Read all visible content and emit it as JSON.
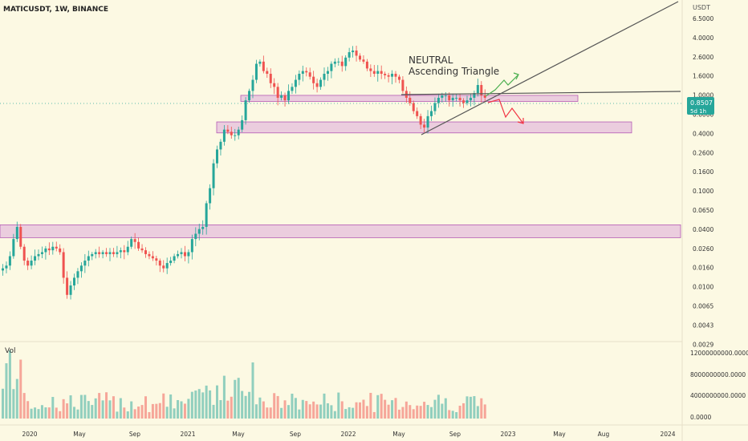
{
  "header": {
    "symbol_line": "MATICUSDT, 1W, BINANCE"
  },
  "annotation": {
    "line1": "NEUTRAL",
    "line2": "Ascending Triangle"
  },
  "price_axis": {
    "currency": "USDT",
    "current_price": "0.8507",
    "countdown": "5d 1h",
    "labels": [
      "6.5000",
      "4.0000",
      "2.6000",
      "1.6000",
      "1.0000",
      "0.6000",
      "0.4000",
      "0.2600",
      "0.1600",
      "0.1000",
      "0.0650",
      "0.0400",
      "0.0260",
      "0.0160",
      "0.0100",
      "0.0065",
      "0.0043",
      "0.0029"
    ]
  },
  "volume": {
    "label": "Vol",
    "axis_labels": [
      "12000000000.0000",
      "8000000000.0000",
      "4000000000.0000",
      "0.0000"
    ]
  },
  "time_axis": {
    "labels": [
      "2020",
      "May",
      "Sep",
      "2021",
      "May",
      "Sep",
      "2022",
      "May",
      "Sep",
      "2023",
      "May",
      "Aug",
      "2024"
    ]
  },
  "colors": {
    "background": "#fcf9e3",
    "up": "#26a69a",
    "down": "#ef5350",
    "zone_fill": "rgba(214,150,214,0.45)",
    "zone_stroke": "#b45ab4",
    "price_badge": "#26a69a",
    "trendline": "#555555",
    "arrow_up": "#4caf50",
    "arrow_down": "#f23645"
  },
  "chart_data": {
    "type": "candlestick",
    "scale": "log",
    "ylim": [
      0.0027,
      8.6
    ],
    "weekly_close": [
      0.015,
      0.016,
      0.02,
      0.03,
      0.04,
      0.025,
      0.018,
      0.016,
      0.018,
      0.02,
      0.021,
      0.022,
      0.024,
      0.023,
      0.025,
      0.024,
      0.022,
      0.012,
      0.008,
      0.01,
      0.012,
      0.014,
      0.016,
      0.018,
      0.02,
      0.021,
      0.022,
      0.021,
      0.022,
      0.021,
      0.022,
      0.021,
      0.022,
      0.023,
      0.022,
      0.025,
      0.03,
      0.028,
      0.024,
      0.023,
      0.021,
      0.02,
      0.019,
      0.018,
      0.016,
      0.015,
      0.017,
      0.018,
      0.02,
      0.021,
      0.022,
      0.02,
      0.022,
      0.03,
      0.034,
      0.038,
      0.04,
      0.07,
      0.1,
      0.18,
      0.25,
      0.3,
      0.4,
      0.38,
      0.35,
      0.35,
      0.4,
      0.5,
      0.8,
      1.0,
      1.3,
      1.9,
      2.0,
      1.6,
      1.5,
      1.2,
      1.1,
      0.85,
      0.9,
      0.8,
      1.0,
      1.1,
      1.3,
      1.5,
      1.6,
      1.55,
      1.4,
      1.2,
      1.1,
      1.3,
      1.5,
      1.6,
      1.9,
      2.0,
      2.0,
      1.8,
      2.2,
      2.5,
      2.6,
      2.3,
      2.1,
      2.0,
      1.7,
      1.6,
      1.5,
      1.6,
      1.5,
      1.45,
      1.4,
      1.5,
      1.4,
      1.3,
      1.0,
      0.85,
      0.75,
      0.62,
      0.55,
      0.45,
      0.42,
      0.55,
      0.62,
      0.75,
      0.85,
      0.9,
      0.9,
      0.8,
      0.85,
      0.85,
      0.8,
      0.75,
      0.8,
      0.85,
      0.95,
      1.15,
      0.9,
      0.85
    ],
    "zones": [
      {
        "low": 0.78,
        "high": 0.9
      },
      {
        "low": 0.37,
        "high": 0.48
      },
      {
        "low": 0.031,
        "high": 0.042
      }
    ]
  }
}
